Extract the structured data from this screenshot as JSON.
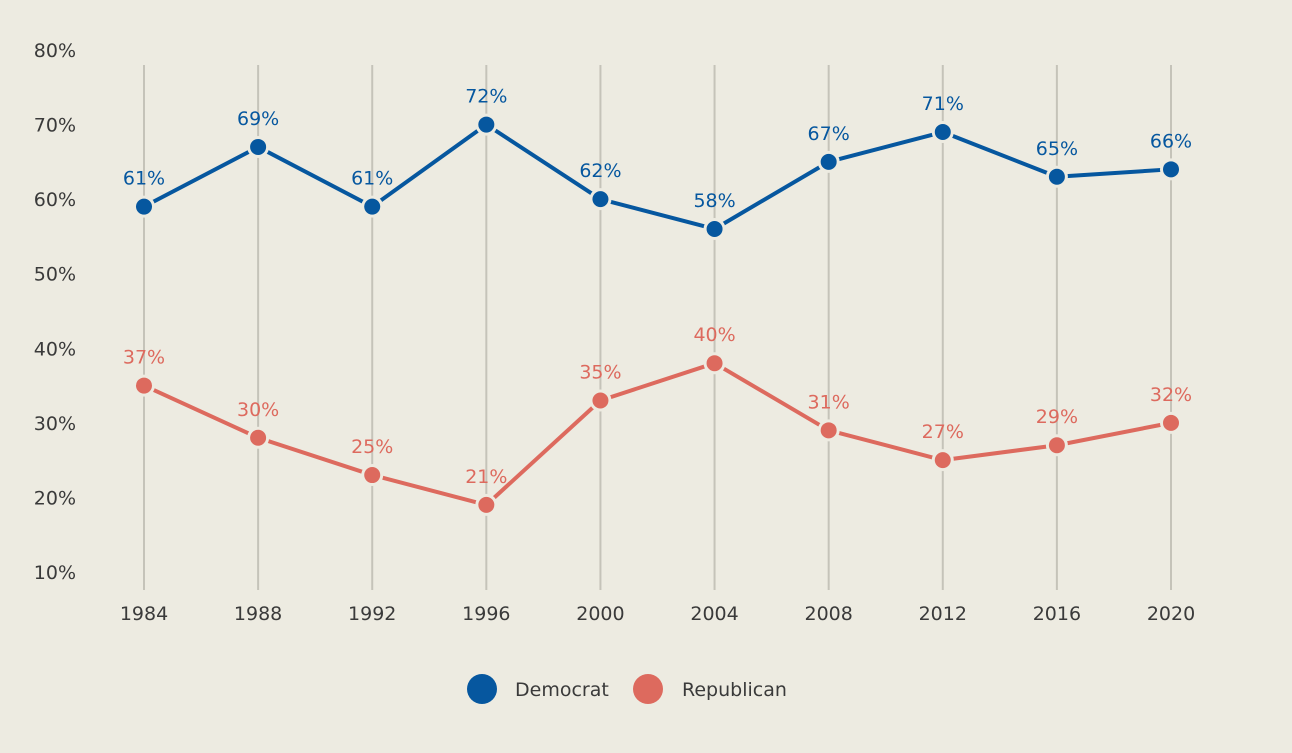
{
  "chart_data": {
    "type": "line",
    "title": "",
    "xlabel": "",
    "ylabel": "",
    "x": [
      "1984",
      "1988",
      "1992",
      "1996",
      "2000",
      "2004",
      "2008",
      "2012",
      "2016",
      "2020"
    ],
    "yticks": [
      "80%",
      "70%",
      "60%",
      "50%",
      "40%",
      "30%",
      "20%",
      "10%"
    ],
    "ylim": [
      10,
      80
    ],
    "grid": "vertical",
    "legend_position": "bottom-center",
    "series": [
      {
        "name": "Democrat",
        "color": "#06579f",
        "values": [
          61,
          69,
          61,
          72,
          62,
          58,
          67,
          71,
          65,
          66
        ],
        "labels": [
          "61%",
          "69%",
          "61%",
          "72%",
          "62%",
          "58%",
          "67%",
          "71%",
          "65%",
          "66%"
        ]
      },
      {
        "name": "Republican",
        "color": "#dd6a5e",
        "values": [
          37,
          30,
          25,
          21,
          35,
          40,
          31,
          27,
          29,
          32
        ],
        "labels": [
          "37%",
          "30%",
          "25%",
          "21%",
          "35%",
          "40%",
          "31%",
          "27%",
          "29%",
          "32%"
        ]
      }
    ],
    "legend": [
      {
        "label": "Democrat",
        "color": "#06579f"
      },
      {
        "label": "Republican",
        "color": "#dd6a5e"
      }
    ]
  }
}
